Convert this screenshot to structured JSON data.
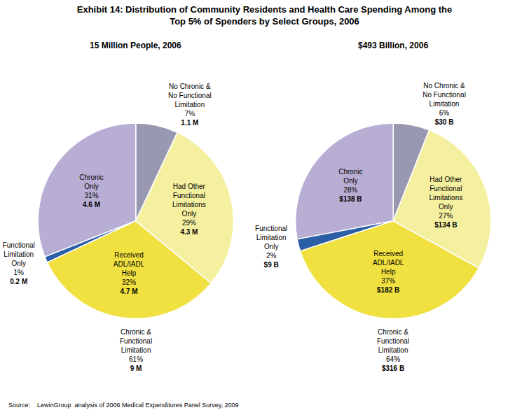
{
  "title": "Exhibit 14: Distribution of Community Residents and Health Care Spending Among the\nTop 5% of Spenders by Select Groups, 2006",
  "source": "Source:    LewinGroup  analysis of 2006 Medical Expenditures Panel Survey, 2009",
  "chart_data": [
    {
      "type": "pie",
      "title": "15 Million People, 2006",
      "categories": [
        "No Chronic &\nNo Functional\nLimitation",
        "Chronic\nOnly",
        "Functional\nLimitation\nOnly",
        "Received\nADL/IADL\nHelp",
        "Had Other\nFunctional\nLimitations\nOnly"
      ],
      "values": [
        7,
        31,
        1,
        32,
        29
      ],
      "value_labels": [
        "7%",
        "31%",
        "1%",
        "32%",
        "29%"
      ],
      "amount_labels": [
        "1.1 M",
        "4.6 M",
        "0.2 M",
        "4.7 M",
        "4.3 M"
      ],
      "colors": [
        "#9898b0",
        "#b8aed4",
        "#2d5fa6",
        "#f0e040",
        "#f5f0a0"
      ],
      "data_labels": true,
      "annotations": [
        "Chronic &\nFunctional\nLimitation\n61%",
        "9 M"
      ]
    },
    {
      "type": "pie",
      "title": "$493 Billion, 2006",
      "categories": [
        "No Chronic &\nNo Functional\nLimitation",
        "Chronic\nOnly",
        "Functional\nLimitation\nOnly",
        "Received\nADL/IADL\nHelp",
        "Had Other\nFunctional\nLimitations\nOnly"
      ],
      "values": [
        6,
        28,
        2,
        37,
        27
      ],
      "value_labels": [
        "6%",
        "28%",
        "2%",
        "37%",
        "27%"
      ],
      "amount_labels": [
        "$30 B",
        "$138 B",
        "$9 B",
        "$182 B",
        "$134 B"
      ],
      "colors": [
        "#9898b0",
        "#b8aed4",
        "#2d5fa6",
        "#f0e040",
        "#f5f0a0"
      ],
      "data_labels": true,
      "annotations": [
        "Chronic &\nFunctional\nLimitation\n64%",
        "$316 B"
      ]
    }
  ]
}
